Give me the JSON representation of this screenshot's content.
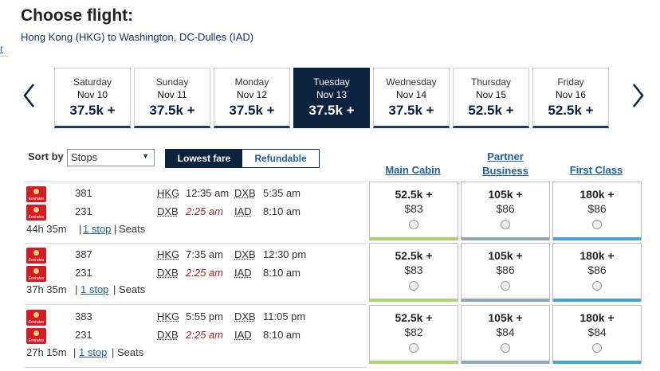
{
  "title": "Choose flight:",
  "route": "Hong Kong (HKG) to Washington, DC-Dulles (IAD)",
  "edge_link": "r",
  "dates": [
    {
      "day": "Saturday",
      "date": "Nov 10",
      "price": "37.5k +"
    },
    {
      "day": "Sunday",
      "date": "Nov 11",
      "price": "37.5k +"
    },
    {
      "day": "Monday",
      "date": "Nov 12",
      "price": "37.5k +"
    },
    {
      "day": "Tuesday",
      "date": "Nov 13",
      "price": "37.5k +",
      "selected": true
    },
    {
      "day": "Wednesday",
      "date": "Nov 14",
      "price": "37.5k +"
    },
    {
      "day": "Thursday",
      "date": "Nov 15",
      "price": "52.5k +"
    },
    {
      "day": "Friday",
      "date": "Nov 16",
      "price": "52.5k +"
    }
  ],
  "sort": {
    "label": "Sort by",
    "value": "Stops"
  },
  "toggle": {
    "lowest": "Lowest fare",
    "refundable": "Refundable"
  },
  "columns": {
    "main": "Main Cabin",
    "partner_1": "Partner",
    "partner_2": "Business",
    "first": "First Class"
  },
  "colors": {
    "main": "#a9d46f",
    "partner": "#8fa5b8",
    "first": "#41a5d1",
    "navy": "#0c2340",
    "link": "#1f5fa8"
  },
  "logo_text": "Emirates",
  "stop_label": "1 stop",
  "seats_label": "Seats",
  "flights": [
    {
      "seg1": {
        "num": "381",
        "from": "HKG",
        "dep": "12:35 am",
        "to": "DXB",
        "arr": "5:35 am"
      },
      "seg2": {
        "num": "231",
        "from": "DXB",
        "dep": "2:25 am",
        "to": "IAD",
        "arr": "8:10 am"
      },
      "duration": "44h 35m",
      "fares": [
        {
          "miles": "52.5k +",
          "usd": "$83"
        },
        {
          "miles": "105k +",
          "usd": "$86"
        },
        {
          "miles": "180k +",
          "usd": "$86"
        }
      ]
    },
    {
      "seg1": {
        "num": "387",
        "from": "HKG",
        "dep": "7:35 am",
        "to": "DXB",
        "arr": "12:30 pm"
      },
      "seg2": {
        "num": "231",
        "from": "DXB",
        "dep": "2:25 am",
        "to": "IAD",
        "arr": "8:10 am"
      },
      "duration": "37h 35m",
      "fares": [
        {
          "miles": "52.5k +",
          "usd": "$83"
        },
        {
          "miles": "105k +",
          "usd": "$86"
        },
        {
          "miles": "180k +",
          "usd": "$86"
        }
      ]
    },
    {
      "seg1": {
        "num": "383",
        "from": "HKG",
        "dep": "5:55 pm",
        "to": "DXB",
        "arr": "11:05 pm"
      },
      "seg2": {
        "num": "231",
        "from": "DXB",
        "dep": "2:25 am",
        "to": "IAD",
        "arr": "8:10 am"
      },
      "duration": "27h 15m",
      "fares": [
        {
          "miles": "52.5k +",
          "usd": "$82"
        },
        {
          "miles": "105k +",
          "usd": "$84"
        },
        {
          "miles": "180k +",
          "usd": "$84"
        }
      ]
    }
  ]
}
